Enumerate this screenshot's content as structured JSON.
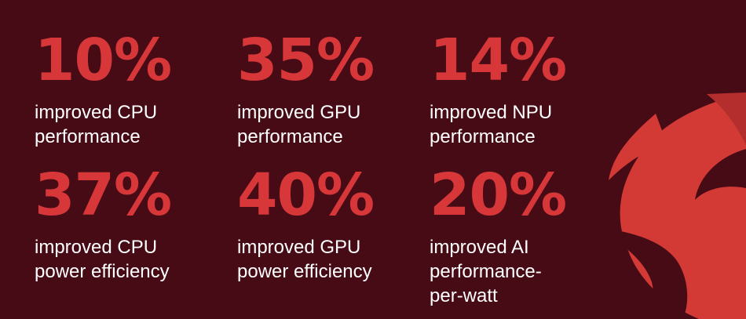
{
  "stats": [
    {
      "value": "10%",
      "lines": [
        "improved CPU",
        "performance"
      ]
    },
    {
      "value": "35%",
      "lines": [
        "improved GPU",
        "performance"
      ]
    },
    {
      "value": "14%",
      "lines": [
        "improved NPU",
        "performance"
      ]
    },
    {
      "value": "37%",
      "lines": [
        "improved CPU",
        "power efficiency"
      ]
    },
    {
      "value": "40%",
      "lines": [
        "improved GPU",
        "power efficiency"
      ]
    },
    {
      "value": "20%",
      "lines": [
        "improved AI",
        "performance-",
        "per-watt"
      ]
    }
  ]
}
